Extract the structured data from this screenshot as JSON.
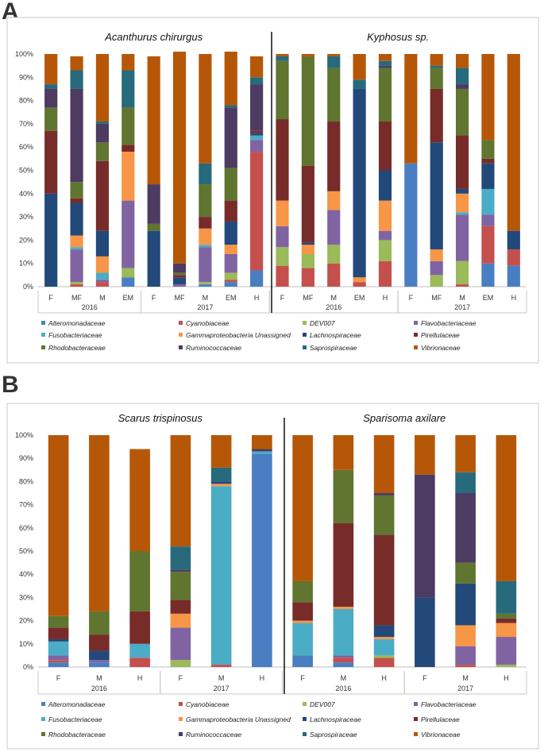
{
  "panel_labels": [
    "A",
    "B"
  ],
  "colors": {
    "Alteromonadaceae": "#4a7ec2",
    "Cyanobiaceae": "#c4504e",
    "DEV007": "#9bba59",
    "Flavobacteriaceae": "#8064a2",
    "Fusobacteriaceae": "#4bacc6",
    "Gammaproteobacteria Unassigned": "#f79646",
    "Lachnospiraceae": "#23497a",
    "Pirellulaceae": "#772c2a",
    "Rhodobacteraceae": "#5f7530",
    "Ruminococcaceae": "#4d3b62",
    "Saprospiraceae": "#276a7c",
    "Vibrionaceae": "#b65708"
  },
  "chart_data": [
    {
      "type": "bar",
      "stacked": true,
      "panel": "A",
      "ylim": [
        0,
        100
      ],
      "yticks": [
        "0%",
        "10%",
        "20%",
        "30%",
        "40%",
        "50%",
        "60%",
        "70%",
        "80%",
        "90%",
        "100%"
      ],
      "legend": [
        "Alteromonadaceae",
        "Cyanobiaceae",
        "DEV007",
        "Flavobacteriaceae",
        "Fusobacteriaceae",
        "Gammaproteobacteria Unassigned",
        "Lachnospiraceae",
        "Pirellulaceae",
        "Rhodobacteraceae",
        "Ruminococcaceae",
        "Saprospiraceae",
        "Vibrionaceae"
      ],
      "species": [
        {
          "title": "Acanthurus chirurgus",
          "years": [
            {
              "year": "2016",
              "bars": [
                {
                  "label": "F",
                  "values": [
                    0,
                    0,
                    0,
                    0,
                    0,
                    0,
                    40,
                    27,
                    10,
                    8,
                    2,
                    13
                  ]
                },
                {
                  "label": "MF",
                  "values": [
                    0,
                    1,
                    1,
                    14,
                    1,
                    5,
                    14,
                    2,
                    7,
                    40,
                    8,
                    6
                  ]
                },
                {
                  "label": "M",
                  "values": [
                    0,
                    2,
                    0,
                    1,
                    3,
                    7,
                    11,
                    30,
                    8,
                    8,
                    1,
                    29
                  ]
                },
                {
                  "label": "EM",
                  "values": [
                    4,
                    0,
                    4,
                    29,
                    0,
                    21,
                    0,
                    3,
                    16,
                    0,
                    16,
                    7
                  ]
                }
              ]
            },
            {
              "year": "2017",
              "bars": [
                {
                  "label": "F",
                  "values": [
                    0,
                    0,
                    0,
                    0,
                    0,
                    0,
                    24,
                    0,
                    3,
                    17,
                    0,
                    55
                  ]
                },
                {
                  "label": "MF",
                  "values": [
                    0,
                    0,
                    0,
                    1,
                    0,
                    0,
                    3,
                    1,
                    1,
                    4,
                    0,
                    91
                  ]
                },
                {
                  "label": "M",
                  "values": [
                    1,
                    0,
                    1,
                    15,
                    1,
                    7,
                    0,
                    5,
                    14,
                    0,
                    9,
                    47
                  ]
                },
                {
                  "label": "EM",
                  "values": [
                    2,
                    1,
                    3,
                    8,
                    0,
                    4,
                    10,
                    9,
                    14,
                    26,
                    1,
                    23
                  ]
                },
                {
                  "label": "H",
                  "values": [
                    7,
                    51,
                    0,
                    5,
                    2,
                    0,
                    1,
                    1,
                    0,
                    20,
                    3,
                    9
                  ]
                }
              ]
            }
          ]
        },
        {
          "title": "Kyphosus sp.",
          "years": [
            {
              "year": "2016",
              "bars": [
                {
                  "label": "F",
                  "values": [
                    0,
                    9,
                    8,
                    9,
                    0,
                    11,
                    0,
                    35,
                    25,
                    0,
                    2,
                    1
                  ]
                },
                {
                  "label": "MF",
                  "values": [
                    0,
                    8,
                    6,
                    0,
                    0,
                    4,
                    1,
                    33,
                    47,
                    0,
                    0,
                    1
                  ]
                },
                {
                  "label": "M",
                  "values": [
                    0,
                    10,
                    8,
                    15,
                    0,
                    8,
                    0,
                    30,
                    23,
                    0,
                    5,
                    1
                  ]
                },
                {
                  "label": "EM",
                  "values": [
                    0,
                    2,
                    0,
                    0,
                    0,
                    2,
                    81,
                    0,
                    0,
                    0,
                    4,
                    11
                  ]
                },
                {
                  "label": "H",
                  "values": [
                    0,
                    11,
                    9,
                    4,
                    0,
                    13,
                    13,
                    21,
                    23,
                    1,
                    2,
                    3
                  ]
                }
              ]
            },
            {
              "year": "2017",
              "bars": [
                {
                  "label": "F",
                  "values": [
                    53,
                    0,
                    0,
                    0,
                    0,
                    0,
                    0,
                    0,
                    0,
                    0,
                    0,
                    47
                  ]
                },
                {
                  "label": "MF",
                  "values": [
                    0,
                    0,
                    5,
                    6,
                    0,
                    5,
                    46,
                    23,
                    9,
                    0,
                    1,
                    5
                  ]
                },
                {
                  "label": "M",
                  "values": [
                    0,
                    1,
                    10,
                    20,
                    1,
                    8,
                    2,
                    23,
                    20,
                    2,
                    7,
                    6
                  ]
                },
                {
                  "label": "EM",
                  "values": [
                    10,
                    16,
                    0,
                    5,
                    11,
                    0,
                    11,
                    2,
                    8,
                    0,
                    0,
                    37
                  ]
                },
                {
                  "label": "H",
                  "values": [
                    9,
                    7,
                    0,
                    0,
                    0,
                    0,
                    8,
                    0,
                    0,
                    0,
                    0,
                    76
                  ]
                }
              ]
            }
          ]
        }
      ]
    },
    {
      "type": "bar",
      "stacked": true,
      "panel": "B",
      "ylim": [
        0,
        100
      ],
      "yticks": [
        "0%",
        "10%",
        "20%",
        "30%",
        "40%",
        "50%",
        "60%",
        "70%",
        "80%",
        "90%",
        "100%"
      ],
      "legend": [
        "Alteromonadaceae",
        "Cyanobiaceae",
        "DEV007",
        "Flavobacteriaceae",
        "Fusobacteriaceae",
        "Gammaproteobacteria Unassigned",
        "Lachnospiraceae",
        "Pirellulaceae",
        "Rhodobacteraceae",
        "Ruminococcaceae",
        "Saprospiraceae",
        "Vibrionaceae"
      ],
      "species": [
        {
          "title": "Scarus trispinosus",
          "years": [
            {
              "year": "2016",
              "bars": [
                {
                  "label": "F",
                  "values": [
                    2,
                    1,
                    0,
                    2,
                    6,
                    0,
                    1,
                    5,
                    5,
                    0,
                    0,
                    78
                  ]
                },
                {
                  "label": "M",
                  "values": [
                    2,
                    0,
                    0,
                    1,
                    0,
                    0,
                    4,
                    7,
                    10,
                    0,
                    0,
                    76
                  ]
                },
                {
                  "label": "H",
                  "values": [
                    0,
                    4,
                    0,
                    0,
                    6,
                    0,
                    0,
                    14,
                    26,
                    0,
                    0,
                    44
                  ]
                }
              ]
            },
            {
              "year": "2017",
              "bars": [
                {
                  "label": "F",
                  "values": [
                    0,
                    0,
                    3,
                    14,
                    0,
                    6,
                    0,
                    6,
                    12,
                    1,
                    10,
                    48
                  ]
                },
                {
                  "label": "M",
                  "values": [
                    0,
                    1,
                    0,
                    0,
                    77,
                    1,
                    1,
                    0,
                    0,
                    0,
                    6,
                    14
                  ]
                },
                {
                  "label": "H",
                  "values": [
                    92,
                    0,
                    0,
                    0,
                    1,
                    0,
                    0,
                    0,
                    0,
                    1,
                    0,
                    6
                  ]
                }
              ]
            }
          ]
        },
        {
          "title": "Sparisoma axilare",
          "years": [
            {
              "year": "2016",
              "bars": [
                {
                  "label": "F",
                  "values": [
                    5,
                    0,
                    0,
                    0,
                    14,
                    1,
                    0,
                    8,
                    9,
                    0,
                    0,
                    63
                  ]
                },
                {
                  "label": "M",
                  "values": [
                    2,
                    2,
                    0,
                    1,
                    20,
                    1,
                    0,
                    36,
                    23,
                    0,
                    0,
                    15
                  ]
                },
                {
                  "label": "H",
                  "values": [
                    0,
                    4,
                    1,
                    0,
                    7,
                    1,
                    5,
                    39,
                    17,
                    1,
                    0,
                    25
                  ]
                }
              ]
            },
            {
              "year": "2017",
              "bars": [
                {
                  "label": "F",
                  "values": [
                    0,
                    0,
                    0,
                    0,
                    0,
                    0,
                    30,
                    0,
                    0,
                    53,
                    0,
                    17
                  ]
                },
                {
                  "label": "M",
                  "values": [
                    0,
                    1,
                    0,
                    8,
                    0,
                    9,
                    18,
                    0,
                    9,
                    30,
                    9,
                    16
                  ]
                },
                {
                  "label": "H",
                  "values": [
                    0,
                    0,
                    1,
                    12,
                    0,
                    6,
                    0,
                    2,
                    2,
                    0,
                    14,
                    63
                  ]
                }
              ]
            }
          ]
        }
      ]
    }
  ]
}
